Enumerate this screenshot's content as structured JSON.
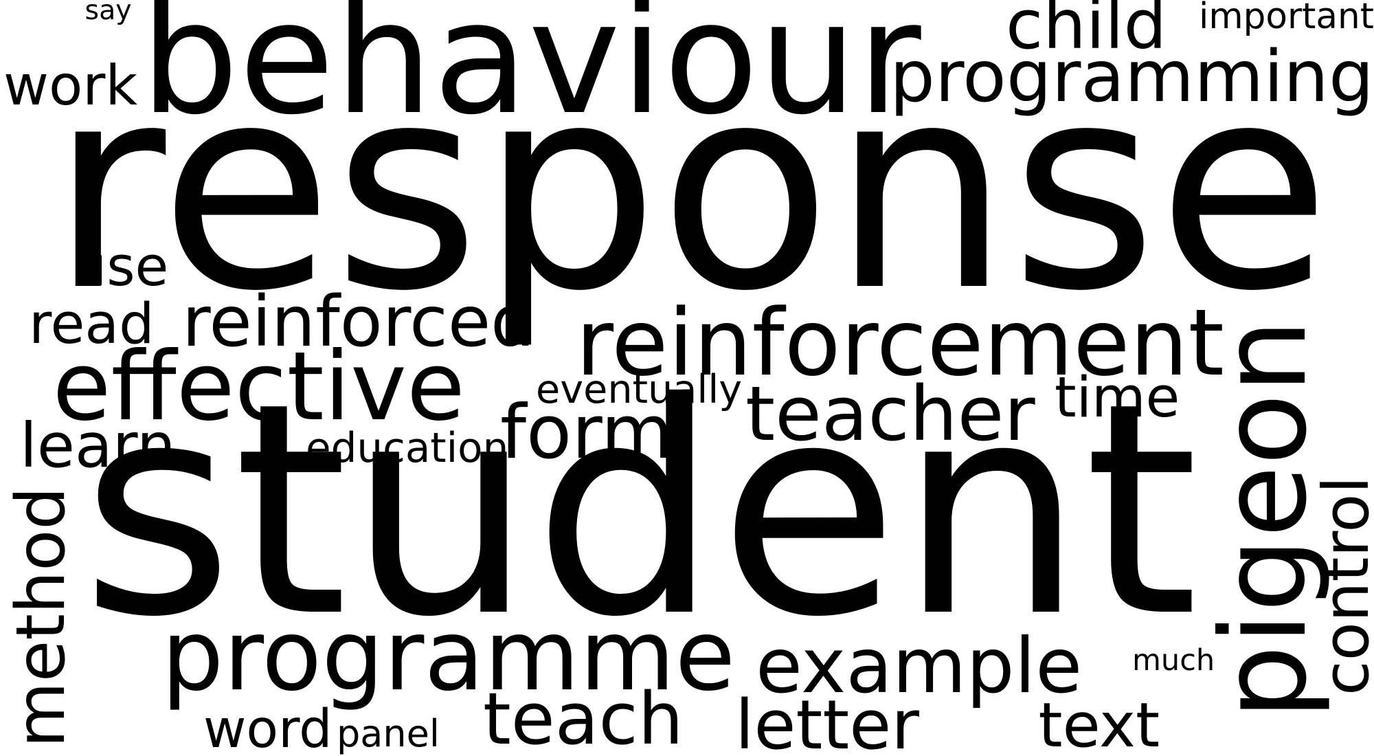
{
  "background_color": "#ffffff",
  "text_color": "#000000",
  "words": [
    {
      "key": "response",
      "text": "response",
      "weight": 1.0,
      "orientation": "horizontal"
    },
    {
      "key": "student",
      "text": "student",
      "weight": 0.9,
      "orientation": "horizontal"
    },
    {
      "key": "behaviour",
      "text": "behaviour",
      "weight": 0.55,
      "orientation": "horizontal"
    },
    {
      "key": "pigeon",
      "text": "pigeon",
      "weight": 0.55,
      "orientation": "vertical"
    },
    {
      "key": "programme",
      "text": "programme",
      "weight": 0.4,
      "orientation": "horizontal"
    },
    {
      "key": "programming",
      "text": "programming",
      "weight": 0.35,
      "orientation": "horizontal"
    },
    {
      "key": "reinforcement",
      "text": "reinforcement",
      "weight": 0.33,
      "orientation": "horizontal"
    },
    {
      "key": "effective",
      "text": "effective",
      "weight": 0.33,
      "orientation": "horizontal"
    },
    {
      "key": "teacher",
      "text": "teacher",
      "weight": 0.3,
      "orientation": "horizontal"
    },
    {
      "key": "example",
      "text": "example",
      "weight": 0.3,
      "orientation": "horizontal"
    },
    {
      "key": "teach",
      "text": "teach",
      "weight": 0.3,
      "orientation": "horizontal"
    },
    {
      "key": "method",
      "text": "method",
      "weight": 0.3,
      "orientation": "vertical"
    },
    {
      "key": "form",
      "text": "form",
      "weight": 0.3,
      "orientation": "horizontal"
    },
    {
      "key": "reinforced",
      "text": "reinforced",
      "weight": 0.25,
      "orientation": "horizontal"
    },
    {
      "key": "letter",
      "text": "letter",
      "weight": 0.25,
      "orientation": "horizontal"
    },
    {
      "key": "child",
      "text": "child",
      "weight": 0.22,
      "orientation": "horizontal"
    },
    {
      "key": "learn",
      "text": "learn",
      "weight": 0.22,
      "orientation": "horizontal"
    },
    {
      "key": "control",
      "text": "control",
      "weight": 0.22,
      "orientation": "vertical"
    },
    {
      "key": "text",
      "text": "text",
      "weight": 0.22,
      "orientation": "horizontal"
    },
    {
      "key": "word",
      "text": "word",
      "weight": 0.22,
      "orientation": "horizontal"
    },
    {
      "key": "work",
      "text": "work",
      "weight": 0.2,
      "orientation": "horizontal"
    },
    {
      "key": "read",
      "text": "read",
      "weight": 0.2,
      "orientation": "horizontal"
    },
    {
      "key": "time",
      "text": "time",
      "weight": 0.2,
      "orientation": "horizontal"
    },
    {
      "key": "use",
      "text": "use",
      "weight": 0.2,
      "orientation": "horizontal"
    },
    {
      "key": "education",
      "text": "education",
      "weight": 0.12,
      "orientation": "horizontal"
    },
    {
      "key": "eventually",
      "text": "eventually",
      "weight": 0.12,
      "orientation": "horizontal"
    },
    {
      "key": "important",
      "text": "important",
      "weight": 0.12,
      "orientation": "horizontal"
    },
    {
      "key": "panel",
      "text": "panel",
      "weight": 0.12,
      "orientation": "horizontal"
    },
    {
      "key": "much",
      "text": "much",
      "weight": 0.1,
      "orientation": "horizontal"
    },
    {
      "key": "say",
      "text": "say",
      "weight": 0.1,
      "orientation": "horizontal"
    }
  ]
}
